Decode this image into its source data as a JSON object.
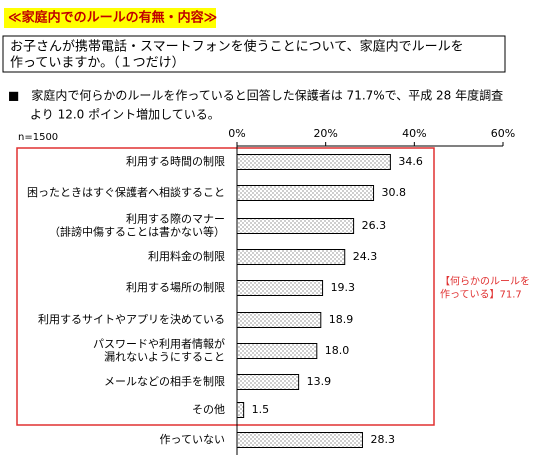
{
  "header": {
    "title": "≪家庭内でのルールの有無・内容≫"
  },
  "question": {
    "lines": [
      "お子さんが携帯電話・スマートフォンを使うことについて、家庭内でルールを",
      "作っていますか。（１つだけ）"
    ]
  },
  "note": {
    "lines": [
      "■　家庭内で何らかのルールを作っていると回答した保護者は 71.7%で、平成 28 年度調査",
      "より 12.0 ポイント増加している。"
    ]
  },
  "chart_data": {
    "type": "bar",
    "orientation": "horizontal",
    "sample_label": "n=1500",
    "categories": [
      "利用する時間の制限",
      "困ったときはすぐ保護者へ相談すること",
      "利用する際のマナー\n（誹謗中傷することは書かない等）",
      "利用料金の制限",
      "利用する場所の制限",
      "利用するサイトやアプリを決めている",
      "パスワードや利用者情報が\n漏れないようにすること",
      "メールなどの相手を制限",
      "その他",
      "作っていない"
    ],
    "values": [
      34.6,
      30.8,
      26.3,
      24.3,
      19.3,
      18.9,
      18.0,
      13.9,
      1.5,
      28.3
    ],
    "value_labels": [
      "34.6",
      "30.8",
      "26.3",
      "24.3",
      "19.3",
      "18.9",
      "18.0",
      "13.9",
      "1.5",
      "28.3"
    ],
    "color": "#000000",
    "xlim": [
      0,
      60
    ],
    "xticks": [
      {
        "value": 0,
        "label": "0%"
      },
      {
        "value": 20,
        "label": "20%"
      },
      {
        "value": 40,
        "label": "40%"
      },
      {
        "value": 60,
        "label": "60%"
      }
    ],
    "annotation": "【何らかのルールを\n作っている】71.7"
  }
}
